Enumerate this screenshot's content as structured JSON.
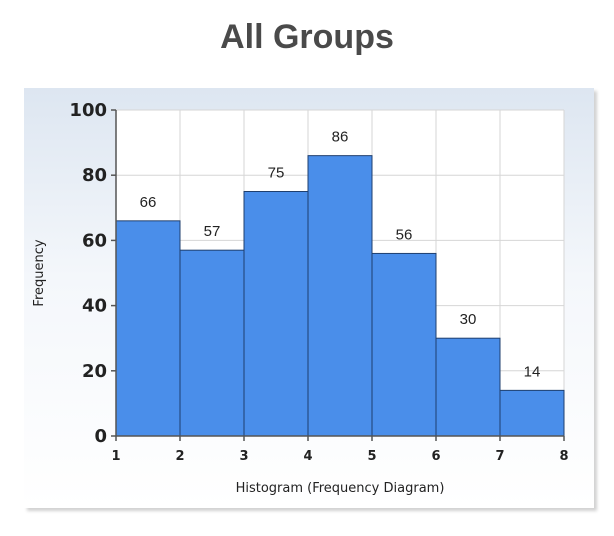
{
  "page": {
    "title": "All Groups"
  },
  "chart_data": {
    "type": "bar",
    "subtype": "histogram",
    "title": "All Groups",
    "xlabel": "Histogram (Frequency Diagram)",
    "ylabel": "Frequency",
    "bin_edges": [
      1,
      2,
      3,
      4,
      5,
      6,
      7,
      8
    ],
    "values": [
      66,
      57,
      75,
      86,
      56,
      30,
      14
    ],
    "data_labels": [
      "66",
      "57",
      "75",
      "86",
      "56",
      "30",
      "14"
    ],
    "xlim": [
      1,
      8
    ],
    "ylim": [
      0,
      100
    ],
    "yticks": [
      0,
      20,
      40,
      60,
      80,
      100
    ],
    "xticks": [
      1,
      2,
      3,
      4,
      5,
      6,
      7,
      8
    ],
    "grid": true,
    "legend": "none",
    "colors": {
      "bar_fill": "#4a8eea",
      "bar_stroke": "#1f3f6e",
      "grid": "#d6d6d6",
      "plot_bg": "#ffffff"
    }
  }
}
